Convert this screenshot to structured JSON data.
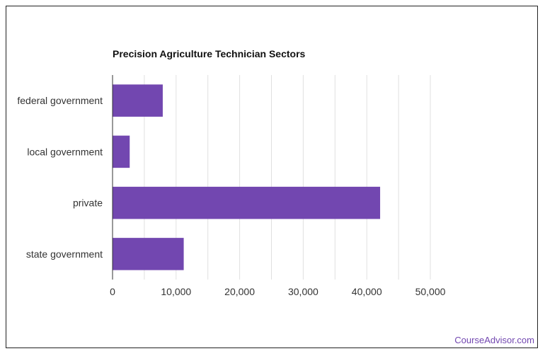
{
  "chart_data": {
    "type": "bar",
    "orientation": "horizontal",
    "title": "Precision Agriculture Technician Sectors",
    "categories": [
      "federal government",
      "local government",
      "private",
      "state government"
    ],
    "values": [
      7900,
      2700,
      42100,
      11200
    ],
    "xlabel": "",
    "ylabel": "",
    "xlim": [
      0,
      50000
    ],
    "x_ticks": [
      0,
      10000,
      20000,
      30000,
      40000,
      50000
    ],
    "x_tick_labels": [
      "0",
      "10,000",
      "20,000",
      "30,000",
      "40,000",
      "50,000"
    ],
    "grid": true,
    "legend": "none",
    "bar_color": "#7247b0"
  },
  "footer": {
    "source": "CourseAdvisor.com",
    "source_color": "#7247b0"
  }
}
